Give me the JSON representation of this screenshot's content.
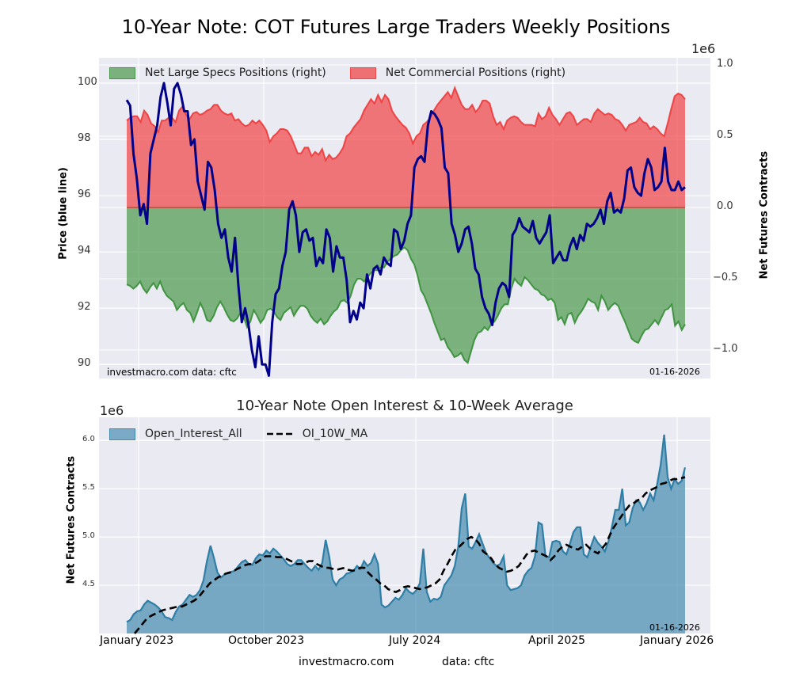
{
  "figure": {
    "title": "10-Year Note: COT Futures Large Traders Weekly Positions",
    "footer_site": "investmacro.com",
    "footer_data": "data: cftc"
  },
  "chart_data": [
    {
      "type": "area",
      "title": "10-Year Note: COT Futures Large Traders Weekly Positions",
      "ylabel_left": "Price (blue line)",
      "ylabel_right": "Net Futures Contracts",
      "right_axis_multiplier": "1e6",
      "ylim_left": [
        89.5,
        100.9
      ],
      "ylim_right": [
        -1.2,
        1.05
      ],
      "yticks_left": [
        "100",
        "98",
        "96",
        "94",
        "92",
        "90"
      ],
      "yticks_right": [
        "1.0",
        "0.5",
        "0.0",
        "−0.5",
        "−1.0"
      ],
      "grid": true,
      "legend_position": "top-left",
      "legend": [
        "Net Large Specs Positions (right)",
        "Net Commercial Positions (right)"
      ],
      "annotation_left": "investmacro.com    data: cftc",
      "annotation_right": "01-16-2026",
      "colors": {
        "specs": "#2e8b2e",
        "commercial": "#f03c3c",
        "price": "#00008b"
      },
      "x_start": "2023-01-03",
      "x_end": "2026-01-13",
      "series": [
        {
          "name": "Net Large Specs Positions (right)",
          "unit": "1e6 contracts",
          "values": [
            -0.54,
            -0.55,
            -0.57,
            -0.55,
            -0.52,
            -0.57,
            -0.6,
            -0.56,
            -0.53,
            -0.57,
            -0.52,
            -0.58,
            -0.62,
            -0.64,
            -0.66,
            -0.72,
            -0.69,
            -0.67,
            -0.72,
            -0.74,
            -0.8,
            -0.74,
            -0.67,
            -0.72,
            -0.79,
            -0.8,
            -0.76,
            -0.7,
            -0.66,
            -0.7,
            -0.75,
            -0.79,
            -0.8,
            -0.78,
            -0.74,
            -0.77,
            -0.84,
            -0.8,
            -0.72,
            -0.76,
            -0.81,
            -0.78,
            -0.72,
            -0.71,
            -0.73,
            -0.77,
            -0.79,
            -0.74,
            -0.72,
            -0.7,
            -0.76,
            -0.72,
            -0.69,
            -0.69,
            -0.71,
            -0.76,
            -0.79,
            -0.81,
            -0.78,
            -0.82,
            -0.8,
            -0.76,
            -0.73,
            -0.71,
            -0.66,
            -0.65,
            -0.67,
            -0.62,
            -0.54,
            -0.5,
            -0.5,
            -0.52,
            -0.49,
            -0.46,
            -0.44,
            -0.44,
            -0.42,
            -0.42,
            -0.38,
            -0.36,
            -0.34,
            -0.33,
            -0.3,
            -0.28,
            -0.3,
            -0.36,
            -0.4,
            -0.48,
            -0.58,
            -0.62,
            -0.68,
            -0.74,
            -0.81,
            -0.87,
            -0.93,
            -0.92,
            -0.98,
            -1.01,
            -1.05,
            -1.04,
            -1.02,
            -1.07,
            -1.09,
            -1.01,
            -0.93,
            -0.88,
            -0.87,
            -0.84,
            -0.86,
            -0.82,
            -0.8,
            -0.76,
            -0.71,
            -0.68,
            -0.68,
            -0.57,
            -0.5,
            -0.53,
            -0.55,
            -0.49,
            -0.51,
            -0.54,
            -0.57,
            -0.58,
            -0.61,
            -0.62,
            -0.65,
            -0.64,
            -0.67,
            -0.79,
            -0.77,
            -0.82,
            -0.75,
            -0.74,
            -0.81,
            -0.76,
            -0.73,
            -0.69,
            -0.64,
            -0.66,
            -0.67,
            -0.72,
            -0.62,
            -0.66,
            -0.72,
            -0.69,
            -0.67,
            -0.69,
            -0.75,
            -0.8,
            -0.86,
            -0.92,
            -0.94,
            -0.95,
            -0.9,
            -0.86,
            -0.85,
            -0.82,
            -0.79,
            -0.82,
            -0.77,
            -0.72,
            -0.71,
            -0.68,
            -0.83,
            -0.8,
            -0.86,
            -0.82
          ]
        },
        {
          "name": "Net Commercial Positions (right)",
          "unit": "1e6 contracts",
          "values": [
            0.61,
            0.63,
            0.64,
            0.64,
            0.6,
            0.68,
            0.65,
            0.59,
            0.57,
            0.53,
            0.61,
            0.61,
            0.63,
            0.63,
            0.6,
            0.68,
            0.71,
            0.65,
            0.62,
            0.66,
            0.67,
            0.65,
            0.66,
            0.68,
            0.69,
            0.72,
            0.72,
            0.68,
            0.66,
            0.65,
            0.66,
            0.61,
            0.62,
            0.59,
            0.57,
            0.58,
            0.61,
            0.59,
            0.61,
            0.58,
            0.54,
            0.46,
            0.5,
            0.52,
            0.55,
            0.55,
            0.54,
            0.5,
            0.44,
            0.38,
            0.38,
            0.42,
            0.42,
            0.36,
            0.39,
            0.37,
            0.41,
            0.33,
            0.37,
            0.34,
            0.35,
            0.38,
            0.42,
            0.5,
            0.52,
            0.56,
            0.59,
            0.62,
            0.68,
            0.72,
            0.76,
            0.73,
            0.79,
            0.74,
            0.79,
            0.76,
            0.68,
            0.64,
            0.61,
            0.58,
            0.56,
            0.52,
            0.45,
            0.5,
            0.52,
            0.58,
            0.6,
            0.63,
            0.68,
            0.72,
            0.75,
            0.78,
            0.81,
            0.77,
            0.84,
            0.78,
            0.72,
            0.69,
            0.69,
            0.72,
            0.67,
            0.7,
            0.75,
            0.75,
            0.73,
            0.64,
            0.58,
            0.6,
            0.55,
            0.61,
            0.63,
            0.64,
            0.63,
            0.6,
            0.58,
            0.58,
            0.58,
            0.57,
            0.66,
            0.62,
            0.64,
            0.7,
            0.65,
            0.62,
            0.58,
            0.62,
            0.66,
            0.67,
            0.64,
            0.58,
            0.6,
            0.62,
            0.62,
            0.6,
            0.66,
            0.69,
            0.67,
            0.65,
            0.66,
            0.65,
            0.62,
            0.61,
            0.58,
            0.54,
            0.58,
            0.59,
            0.6,
            0.63,
            0.6,
            0.59,
            0.55,
            0.57,
            0.55,
            0.52,
            0.5,
            0.59,
            0.69,
            0.78,
            0.8,
            0.79,
            0.76
          ]
        },
        {
          "name": "Price (blue line)",
          "axis": "left",
          "values": [
            99.4,
            99.2,
            97.5,
            96.6,
            95.3,
            95.7,
            95.0,
            97.5,
            98.0,
            98.5,
            99.5,
            100.0,
            99.3,
            98.5,
            99.8,
            100.0,
            99.6,
            99.0,
            99.0,
            97.8,
            98.0,
            96.5,
            96.0,
            95.5,
            97.2,
            97.0,
            96.2,
            95.0,
            94.5,
            94.8,
            93.8,
            93.3,
            94.5,
            92.8,
            91.5,
            92.0,
            91.4,
            90.5,
            89.9,
            91.0,
            90.0,
            90.0,
            89.6,
            91.5,
            92.5,
            92.7,
            93.5,
            94.0,
            95.5,
            95.8,
            95.3,
            94.0,
            94.7,
            94.8,
            94.4,
            94.5,
            93.5,
            93.8,
            93.6,
            94.8,
            94.5,
            93.3,
            94.2,
            93.8,
            93.8,
            93.0,
            91.5,
            91.9,
            91.6,
            92.2,
            92.0,
            93.2,
            92.7,
            93.4,
            93.5,
            93.2,
            93.8,
            93.6,
            93.5,
            94.8,
            94.7,
            94.1,
            94.4,
            95.0,
            95.3,
            97.0,
            97.3,
            97.4,
            97.2,
            98.5,
            99.0,
            98.9,
            98.7,
            98.4,
            97.0,
            96.8,
            95.0,
            94.6,
            94.0,
            94.3,
            94.8,
            94.9,
            94.3,
            93.4,
            93.2,
            92.4,
            92.0,
            91.8,
            91.4,
            92.2,
            92.7,
            92.9,
            92.8,
            92.4,
            94.6,
            94.8,
            95.2,
            94.9,
            94.8,
            94.7,
            95.1,
            94.5,
            94.3,
            94.5,
            94.7,
            95.3,
            93.6,
            93.8,
            94.0,
            93.7,
            93.7,
            94.2,
            94.5,
            94.1,
            94.6,
            94.4,
            95.0,
            94.9,
            95.0,
            95.2,
            95.5,
            95.0,
            95.8,
            96.1,
            95.4,
            95.5,
            95.4,
            95.9,
            96.9,
            97.0,
            96.3,
            96.1,
            96.0,
            96.8,
            97.3,
            97.0,
            96.2,
            96.3,
            96.5,
            97.7,
            96.5,
            96.2,
            96.2,
            96.5,
            96.2,
            96.3
          ]
        }
      ]
    },
    {
      "type": "area",
      "title": "10-Year Note Open Interest & 10-Week Average",
      "ylabel": "Net Futures Contracts",
      "y_multiplier": "1e6",
      "ylim": [
        4.0,
        6.24
      ],
      "yticks": [
        "6.0",
        "5.5",
        "5.0",
        "4.5"
      ],
      "xticks": [
        "January 2023",
        "October 2023",
        "July 2024",
        "April 2025",
        "January 2026"
      ],
      "grid": true,
      "legend_position": "top-left",
      "legend": [
        "Open_Interest_All",
        "OI_10W_MA"
      ],
      "annotation_right": "01-16-2026",
      "colors": {
        "open_interest": "#2e7ea6",
        "ma": "#000000"
      },
      "series": [
        {
          "name": "Open_Interest_All",
          "unit": "1e6 contracts",
          "values": [
            4.12,
            4.14,
            4.2,
            4.23,
            4.24,
            4.3,
            4.34,
            4.32,
            4.3,
            4.27,
            4.23,
            4.17,
            4.16,
            4.14,
            4.22,
            4.28,
            4.3,
            4.35,
            4.4,
            4.38,
            4.4,
            4.45,
            4.55,
            4.75,
            4.91,
            4.78,
            4.63,
            4.58,
            4.61,
            4.63,
            4.64,
            4.65,
            4.7,
            4.74,
            4.76,
            4.72,
            4.71,
            4.78,
            4.82,
            4.81,
            4.86,
            4.83,
            4.88,
            4.85,
            4.81,
            4.77,
            4.72,
            4.7,
            4.72,
            4.76,
            4.76,
            4.72,
            4.68,
            4.65,
            4.7,
            4.66,
            4.73,
            4.97,
            4.8,
            4.56,
            4.5,
            4.56,
            4.58,
            4.62,
            4.63,
            4.65,
            4.7,
            4.67,
            4.75,
            4.7,
            4.73,
            4.82,
            4.72,
            4.3,
            4.27,
            4.29,
            4.33,
            4.37,
            4.35,
            4.4,
            4.47,
            4.43,
            4.41,
            4.45,
            4.52,
            4.88,
            4.43,
            4.33,
            4.36,
            4.35,
            4.38,
            4.5,
            4.55,
            4.6,
            4.7,
            4.9,
            5.3,
            5.45,
            4.9,
            4.88,
            4.95,
            5.03,
            4.93,
            4.83,
            4.78,
            4.73,
            4.7,
            4.72,
            4.8,
            4.5,
            4.45,
            4.46,
            4.47,
            4.5,
            4.6,
            4.65,
            4.68,
            4.8,
            5.15,
            5.13,
            4.8,
            4.79,
            4.95,
            4.96,
            4.95,
            4.85,
            4.82,
            4.93,
            5.05,
            5.1,
            5.1,
            4.82,
            4.79,
            4.9,
            5.0,
            4.94,
            4.9,
            4.85,
            4.95,
            5.1,
            5.28,
            5.28,
            5.5,
            5.12,
            5.15,
            5.3,
            5.38,
            5.36,
            5.28,
            5.35,
            5.45,
            5.38,
            5.55,
            5.75,
            6.06,
            5.62,
            5.5,
            5.6,
            5.55,
            5.58,
            5.72
          ]
        },
        {
          "name": "OI_10W_MA",
          "unit": "1e6 contracts",
          "values": [
            3.95,
            3.97,
            4.0,
            4.05,
            4.1,
            4.15,
            4.18,
            4.2,
            4.22,
            4.24,
            4.25,
            4.26,
            4.27,
            4.28,
            4.28,
            4.3,
            4.32,
            4.34,
            4.37,
            4.42,
            4.47,
            4.52,
            4.55,
            4.58,
            4.6,
            4.62,
            4.63,
            4.65,
            4.67,
            4.69,
            4.71,
            4.72,
            4.72,
            4.74,
            4.77,
            4.8,
            4.8,
            4.8,
            4.79,
            4.79,
            4.78,
            4.76,
            4.74,
            4.72,
            4.72,
            4.73,
            4.75,
            4.75,
            4.72,
            4.7,
            4.68,
            4.68,
            4.67,
            4.66,
            4.67,
            4.68,
            4.66,
            4.65,
            4.66,
            4.68,
            4.68,
            4.63,
            4.59,
            4.56,
            4.52,
            4.5,
            4.46,
            4.44,
            4.43,
            4.45,
            4.48,
            4.49,
            4.48,
            4.47,
            4.46,
            4.47,
            4.48,
            4.5,
            4.52,
            4.56,
            4.65,
            4.72,
            4.8,
            4.87,
            4.9,
            4.94,
            4.98,
            5.0,
            4.98,
            4.93,
            4.85,
            4.82,
            4.78,
            4.72,
            4.68,
            4.66,
            4.64,
            4.65,
            4.67,
            4.7,
            4.76,
            4.82,
            4.85,
            4.86,
            4.84,
            4.82,
            4.8,
            4.76,
            4.8,
            4.86,
            4.9,
            4.92,
            4.9,
            4.88,
            4.87,
            4.9,
            4.92,
            4.88,
            4.85,
            4.83,
            4.88,
            4.93,
            5.02,
            5.1,
            5.16,
            5.22,
            5.28,
            5.33,
            5.35,
            5.38,
            5.4,
            5.45,
            5.48,
            5.5,
            5.52,
            5.55,
            5.56,
            5.58,
            5.6,
            5.6,
            5.61,
            5.62
          ]
        }
      ]
    }
  ]
}
